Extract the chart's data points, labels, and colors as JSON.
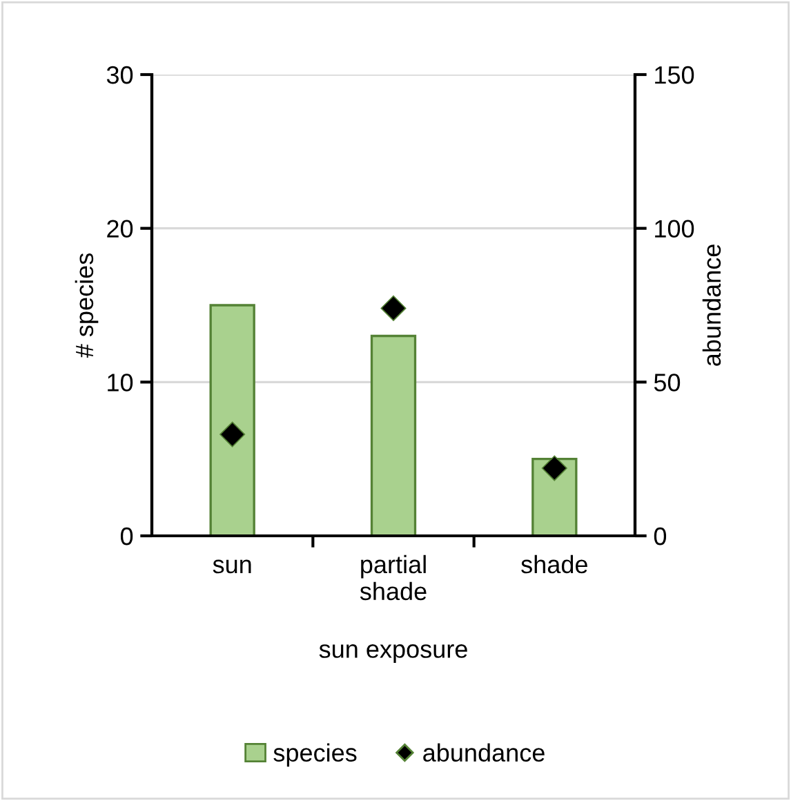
{
  "chart_data": {
    "type": "bar",
    "xlabel": "sun exposure",
    "ylabel": "# species",
    "y2label": "abundance",
    "categories": [
      "sun",
      "partial\nshade",
      "shade"
    ],
    "series": [
      {
        "name": "species",
        "color": "#a9d18e",
        "values": [
          15,
          13,
          5
        ]
      },
      {
        "name": "abundance",
        "type": "scatter",
        "axis": "y2",
        "color": "#000000",
        "marker": "diamond",
        "values": [
          33,
          74,
          22
        ]
      }
    ],
    "ylim": [
      0,
      30
    ],
    "yticks": [
      0,
      10,
      20,
      30
    ],
    "y2lim": [
      0,
      150
    ],
    "y2ticks": [
      0,
      50,
      100,
      150
    ],
    "grid": "y",
    "legend": "bottom"
  }
}
